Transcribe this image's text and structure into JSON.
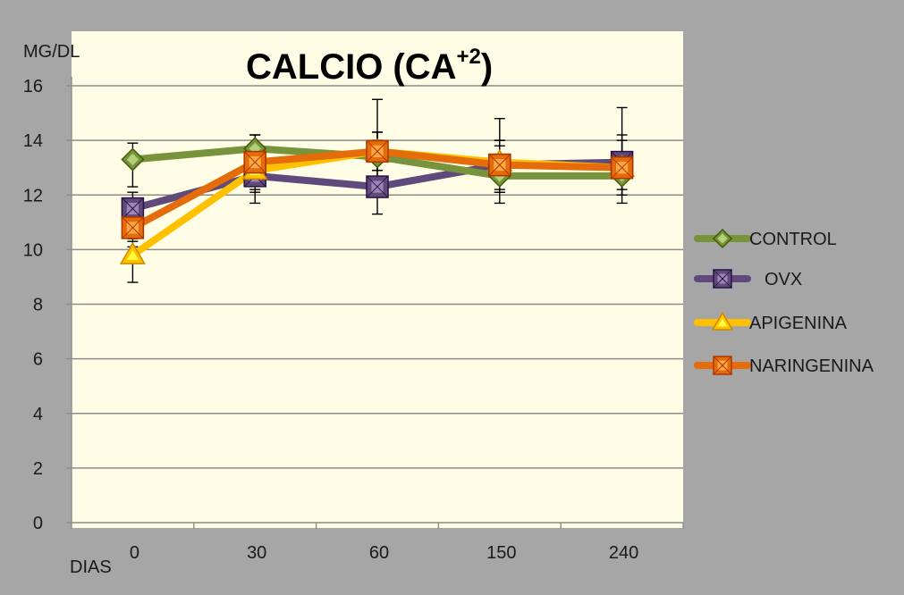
{
  "chart_data": {
    "type": "line",
    "title": "CALCIO (CA",
    "title_superscript": "+2",
    "title_suffix": ")",
    "ylabel": "MG/DL",
    "xlabel": "DIAS",
    "categories": [
      "0",
      "30",
      "60",
      "150",
      "240"
    ],
    "ylim": [
      0,
      16
    ],
    "yticks": [
      "0",
      "2",
      "4",
      "6",
      "8",
      "10",
      "12",
      "14",
      "16"
    ],
    "grid": true,
    "legend_position": "right",
    "series": [
      {
        "name": "CONTROL",
        "values": [
          13.3,
          13.7,
          13.4,
          12.7,
          12.7
        ],
        "err_upper": [
          13.9,
          14.2,
          14.3,
          13.8,
          13.5
        ],
        "err_lower": [
          12.3,
          12.7,
          12.9,
          11.7,
          11.7
        ],
        "color": "#77933c",
        "marker": "diamond"
      },
      {
        "name": "OVX",
        "values": [
          11.5,
          12.7,
          12.3,
          13.1,
          13.2
        ],
        "err_upper": [
          12.1,
          13.3,
          14.0,
          14.0,
          14.2
        ],
        "err_lower": [
          10.4,
          12.1,
          11.3,
          12.1,
          12.2
        ],
        "color": "#604a7b",
        "marker": "square"
      },
      {
        "name": "APIGENINA",
        "values": [
          9.8,
          12.9,
          13.6,
          13.2,
          13.0
        ],
        "err_upper": [
          10.3,
          13.5,
          15.5,
          14.8,
          15.2
        ],
        "err_lower": [
          8.8,
          11.7,
          12.6,
          12.2,
          12.0
        ],
        "color": "#ffc000",
        "marker": "triangle"
      },
      {
        "name": "NARINGENINA",
        "values": [
          10.8,
          13.2,
          13.6,
          13.1,
          13.0
        ],
        "err_upper": [
          11.5,
          14.2,
          14.3,
          14.0,
          14.0
        ],
        "err_lower": [
          10.1,
          12.2,
          12.9,
          12.1,
          12.0
        ],
        "color": "#e46c0a",
        "marker": "box"
      }
    ]
  }
}
